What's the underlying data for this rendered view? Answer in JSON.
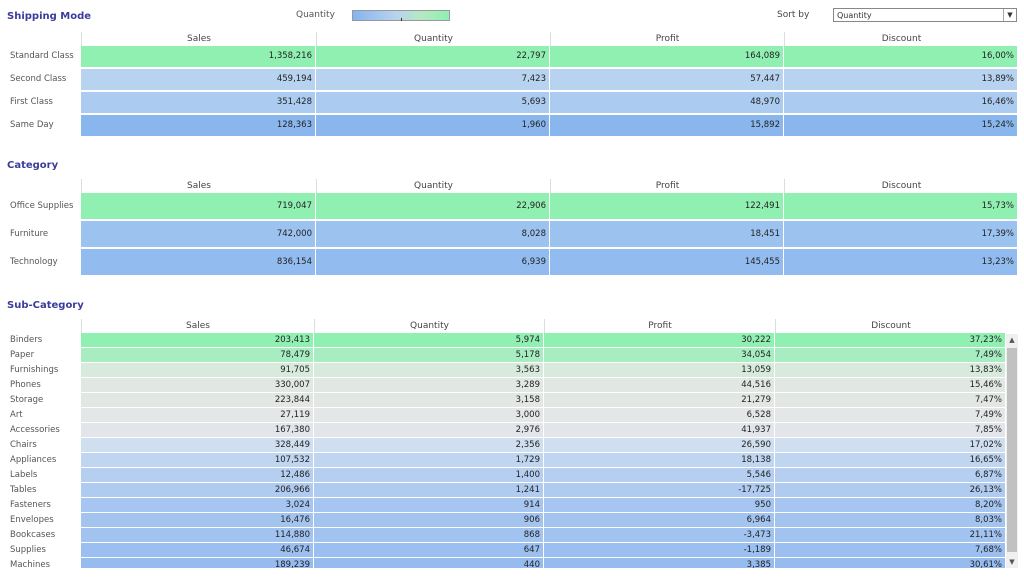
{
  "legend": {
    "label": "Quantity"
  },
  "sort": {
    "label": "Sort by",
    "value": "Quantity"
  },
  "headers": [
    "Sales",
    "Quantity",
    "Profit",
    "Discount"
  ],
  "shipping": {
    "title": "Shipping Mode",
    "rows": [
      {
        "label": "Standard Class",
        "sales": "1,358,216",
        "quantity": "22,797",
        "profit": "164,089",
        "discount": "16,00%",
        "color": "#8ff0b1"
      },
      {
        "label": "Second Class",
        "sales": "459,194",
        "quantity": "7,423",
        "profit": "57,447",
        "discount": "13,89%",
        "color": "#b7d3ef"
      },
      {
        "label": "First Class",
        "sales": "351,428",
        "quantity": "5,693",
        "profit": "48,970",
        "discount": "16,46%",
        "color": "#abcbf0"
      },
      {
        "label": "Same Day",
        "sales": "128,363",
        "quantity": "1,960",
        "profit": "15,892",
        "discount": "15,24%",
        "color": "#8ab6ee"
      }
    ]
  },
  "category": {
    "title": "Category",
    "rows": [
      {
        "label": "Office Supplies",
        "sales": "719,047",
        "quantity": "22,906",
        "profit": "122,491",
        "discount": "15,73%",
        "color": "#8ff0b1"
      },
      {
        "label": "Furniture",
        "sales": "742,000",
        "quantity": "8,028",
        "profit": "18,451",
        "discount": "17,39%",
        "color": "#9cc3f0"
      },
      {
        "label": "Technology",
        "sales": "836,154",
        "quantity": "6,939",
        "profit": "145,455",
        "discount": "13,23%",
        "color": "#92bcef"
      }
    ]
  },
  "subcategory": {
    "title": "Sub-Category",
    "rows": [
      {
        "label": "Binders",
        "sales": "203,413",
        "quantity": "5,974",
        "profit": "30,222",
        "discount": "37,23%",
        "color": "#8ff0b1"
      },
      {
        "label": "Paper",
        "sales": "78,479",
        "quantity": "5,178",
        "profit": "34,054",
        "discount": "7,49%",
        "color": "#a8ecc1"
      },
      {
        "label": "Furnishings",
        "sales": "91,705",
        "quantity": "3,563",
        "profit": "13,059",
        "discount": "13,83%",
        "color": "#d7eadc"
      },
      {
        "label": "Phones",
        "sales": "330,007",
        "quantity": "3,289",
        "profit": "44,516",
        "discount": "15,46%",
        "color": "#e1e7e2"
      },
      {
        "label": "Storage",
        "sales": "223,844",
        "quantity": "3,158",
        "profit": "21,279",
        "discount": "7,47%",
        "color": "#e3e7e4"
      },
      {
        "label": "Art",
        "sales": "27,119",
        "quantity": "3,000",
        "profit": "6,528",
        "discount": "7,49%",
        "color": "#e4e6e7"
      },
      {
        "label": "Accessories",
        "sales": "167,380",
        "quantity": "2,976",
        "profit": "41,937",
        "discount": "7,85%",
        "color": "#e2e6ea"
      },
      {
        "label": "Chairs",
        "sales": "328,449",
        "quantity": "2,356",
        "profit": "26,590",
        "discount": "17,02%",
        "color": "#d0dff0"
      },
      {
        "label": "Appliances",
        "sales": "107,532",
        "quantity": "1,729",
        "profit": "18,138",
        "discount": "16,65%",
        "color": "#bfd5f0"
      },
      {
        "label": "Labels",
        "sales": "12,486",
        "quantity": "1,400",
        "profit": "5,546",
        "discount": "6,87%",
        "color": "#b6cff0"
      },
      {
        "label": "Tables",
        "sales": "206,966",
        "quantity": "1,241",
        "profit": "-17,725",
        "discount": "26,13%",
        "color": "#b0cbf0"
      },
      {
        "label": "Fasteners",
        "sales": "3,024",
        "quantity": "914",
        "profit": "950",
        "discount": "8,20%",
        "color": "#a6c5f0"
      },
      {
        "label": "Envelopes",
        "sales": "16,476",
        "quantity": "906",
        "profit": "6,964",
        "discount": "8,03%",
        "color": "#a4c4f0"
      },
      {
        "label": "Bookcases",
        "sales": "114,880",
        "quantity": "868",
        "profit": "-3,473",
        "discount": "21,11%",
        "color": "#a2c3f0"
      },
      {
        "label": "Supplies",
        "sales": "46,674",
        "quantity": "647",
        "profit": "-1,189",
        "discount": "7,68%",
        "color": "#9bbff0"
      },
      {
        "label": "Machines",
        "sales": "189,239",
        "quantity": "440",
        "profit": "3,385",
        "discount": "30,61%",
        "color": "#95bbef"
      }
    ]
  }
}
